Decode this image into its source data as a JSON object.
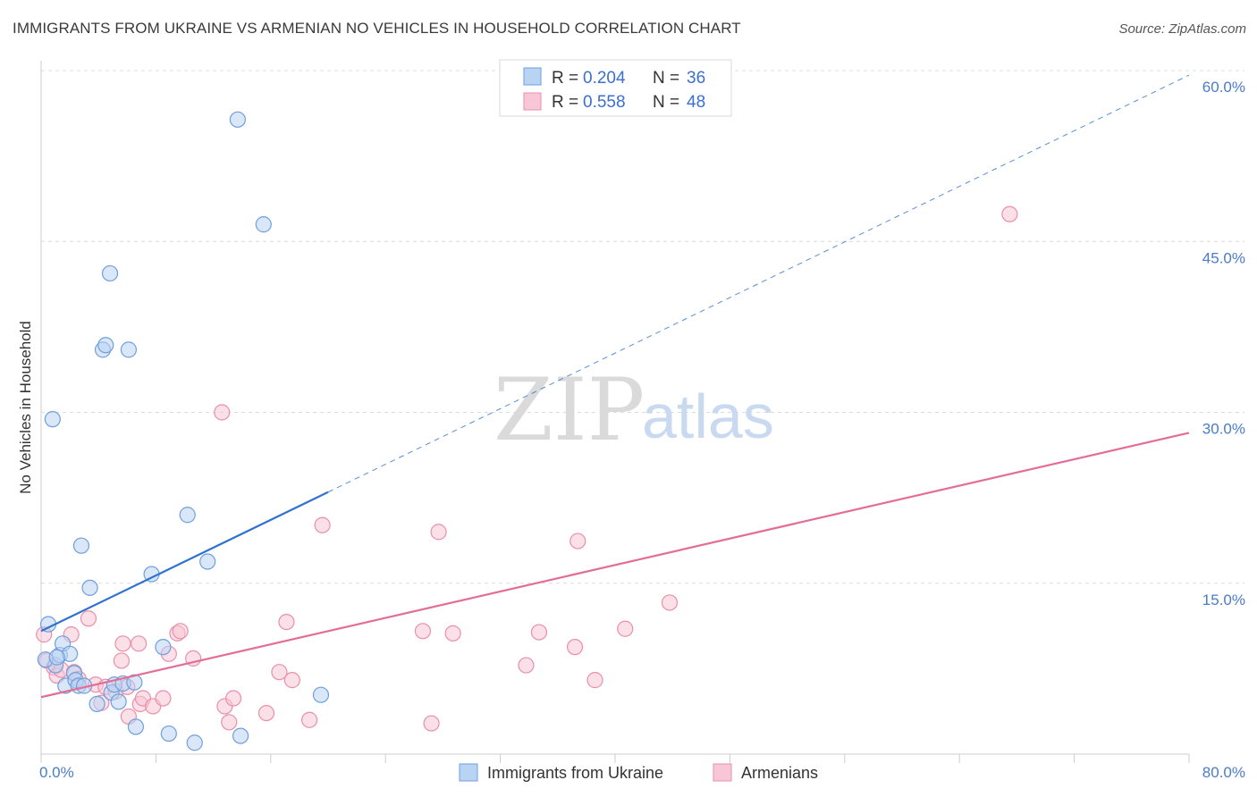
{
  "title": "IMMIGRANTS FROM UKRAINE VS ARMENIAN NO VEHICLES IN HOUSEHOLD CORRELATION CHART",
  "source": "Source: ZipAtlas.com",
  "watermark": {
    "zip": "ZIP",
    "atlas": "atlas"
  },
  "colors": {
    "ukraine_fill": "#b9d3f3",
    "ukraine_stroke": "#6f9fdc",
    "ukraine_line": "#2f72d0",
    "armenian_fill": "#f8c6d6",
    "armenian_stroke": "#e98fac",
    "armenian_line": "#e46d97",
    "grid": "#dcdcdc",
    "axis_text": "#4a7cc9"
  },
  "legend": {
    "r_label": "R =",
    "n_label": "N =",
    "rows": [
      {
        "r": "0.204",
        "n": "36"
      },
      {
        "r": "0.558",
        "n": "48"
      }
    ]
  },
  "chart_data": {
    "type": "scatter",
    "title": "IMMIGRANTS FROM UKRAINE VS ARMENIAN NO VEHICLES IN HOUSEHOLD CORRELATION CHART",
    "xlabel": "",
    "ylabel": "No Vehicles in Household",
    "xlim": [
      0,
      80
    ],
    "ylim": [
      0,
      60
    ],
    "x_tick_labels": [
      "0.0%",
      "80.0%"
    ],
    "y_ticks": [
      15,
      30,
      45,
      60
    ],
    "y_tick_labels": [
      "15.0%",
      "30.0%",
      "45.0%",
      "60.0%"
    ],
    "grid": true,
    "legend_position": "top-center",
    "series": [
      {
        "name": "Immigrants from Ukraine",
        "points": [
          [
            0.5,
            11.4
          ],
          [
            0.8,
            29.4
          ],
          [
            1.0,
            7.8
          ],
          [
            1.3,
            8.7
          ],
          [
            1.5,
            9.7
          ],
          [
            1.7,
            6.0
          ],
          [
            2.0,
            8.8
          ],
          [
            2.3,
            7.1
          ],
          [
            2.4,
            6.5
          ],
          [
            2.6,
            6.0
          ],
          [
            2.8,
            18.3
          ],
          [
            3.0,
            6.0
          ],
          [
            3.4,
            14.6
          ],
          [
            3.9,
            4.4
          ],
          [
            4.3,
            35.5
          ],
          [
            4.5,
            35.9
          ],
          [
            4.9,
            5.4
          ],
          [
            5.1,
            6.1
          ],
          [
            5.4,
            4.6
          ],
          [
            5.7,
            6.2
          ],
          [
            6.1,
            35.5
          ],
          [
            6.5,
            6.3
          ],
          [
            6.6,
            2.4
          ],
          [
            7.7,
            15.8
          ],
          [
            8.5,
            9.4
          ],
          [
            8.9,
            1.8
          ],
          [
            10.2,
            21.0
          ],
          [
            10.7,
            1.0
          ],
          [
            11.6,
            16.9
          ],
          [
            13.7,
            55.7
          ],
          [
            13.9,
            1.6
          ],
          [
            15.5,
            46.5
          ],
          [
            19.5,
            5.2
          ],
          [
            4.8,
            42.2
          ],
          [
            0.3,
            8.3
          ],
          [
            1.1,
            8.5
          ]
        ],
        "trendline": {
          "x": [
            0,
            20
          ],
          "y": [
            10.8,
            23.0
          ],
          "dashed_extension_to": [
            80,
            59.6
          ]
        }
      },
      {
        "name": "Armenians",
        "points": [
          [
            0.2,
            10.5
          ],
          [
            0.4,
            8.2
          ],
          [
            0.9,
            7.6
          ],
          [
            1.1,
            6.9
          ],
          [
            1.4,
            7.4
          ],
          [
            2.1,
            10.5
          ],
          [
            2.3,
            7.2
          ],
          [
            2.6,
            6.6
          ],
          [
            3.3,
            11.9
          ],
          [
            3.8,
            6.1
          ],
          [
            4.2,
            4.5
          ],
          [
            4.5,
            5.9
          ],
          [
            5.2,
            5.5
          ],
          [
            5.6,
            8.2
          ],
          [
            5.7,
            9.7
          ],
          [
            6.0,
            5.9
          ],
          [
            6.1,
            3.3
          ],
          [
            6.8,
            9.7
          ],
          [
            6.9,
            4.4
          ],
          [
            7.1,
            4.9
          ],
          [
            7.8,
            4.2
          ],
          [
            8.5,
            4.9
          ],
          [
            8.9,
            8.8
          ],
          [
            9.5,
            10.6
          ],
          [
            9.7,
            10.8
          ],
          [
            10.6,
            8.4
          ],
          [
            12.6,
            30.0
          ],
          [
            12.8,
            4.2
          ],
          [
            13.1,
            2.8
          ],
          [
            13.4,
            4.9
          ],
          [
            15.7,
            3.6
          ],
          [
            16.6,
            7.2
          ],
          [
            17.1,
            11.6
          ],
          [
            17.5,
            6.5
          ],
          [
            18.7,
            3.0
          ],
          [
            19.6,
            20.1
          ],
          [
            26.6,
            10.8
          ],
          [
            27.2,
            2.7
          ],
          [
            27.7,
            19.5
          ],
          [
            28.7,
            10.6
          ],
          [
            33.8,
            7.8
          ],
          [
            34.7,
            10.7
          ],
          [
            37.2,
            9.4
          ],
          [
            37.4,
            18.7
          ],
          [
            38.6,
            6.5
          ],
          [
            40.7,
            11.0
          ],
          [
            43.8,
            13.3
          ],
          [
            67.5,
            47.4
          ]
        ],
        "trendline": {
          "x": [
            0,
            80
          ],
          "y": [
            5.0,
            28.2
          ]
        }
      }
    ]
  },
  "bottom_legend": [
    "Immigrants from Ukraine",
    "Armenians"
  ]
}
